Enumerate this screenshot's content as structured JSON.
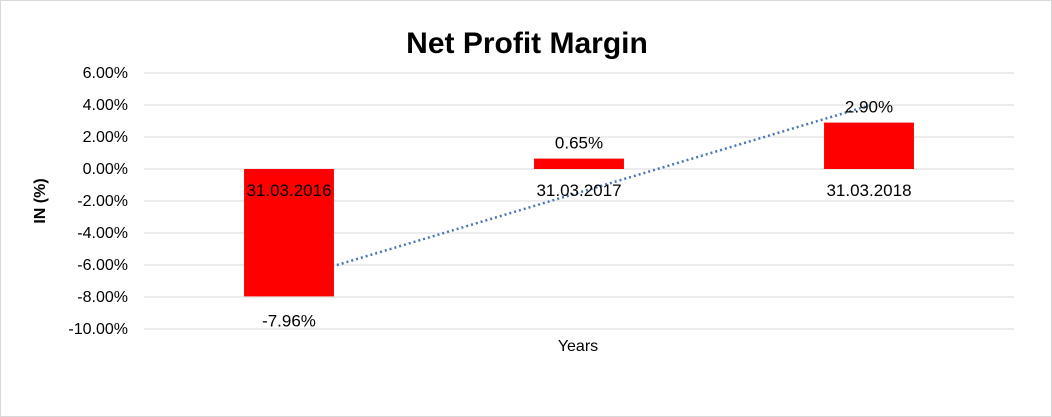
{
  "chart_data": {
    "type": "bar",
    "title": "Net Profit Margin",
    "xlabel": "Years",
    "ylabel": "IN (%)",
    "categories": [
      "31.03.2016",
      "31.03.2017",
      "31.03.2018"
    ],
    "values": [
      -7.96,
      0.65,
      2.9
    ],
    "data_labels": [
      "-7.96%",
      "0.65%",
      "2.90%"
    ],
    "ylim": [
      -10,
      6
    ],
    "yticks": [
      6,
      4,
      2,
      0,
      -2,
      -4,
      -6,
      -8,
      -10
    ],
    "ytick_labels": [
      "6.00%",
      "4.00%",
      "2.00%",
      "0.00%",
      "-2.00%",
      "-4.00%",
      "-6.00%",
      "-8.00%",
      "-10.00%"
    ],
    "grid": true,
    "legend": "none",
    "trendline": {
      "type": "linear",
      "style": "dotted"
    },
    "colors": {
      "bar": "#ff0000",
      "grid": "#d9d9d9",
      "trendline": "#4a77b4",
      "frame": "#d9d9d9"
    }
  }
}
